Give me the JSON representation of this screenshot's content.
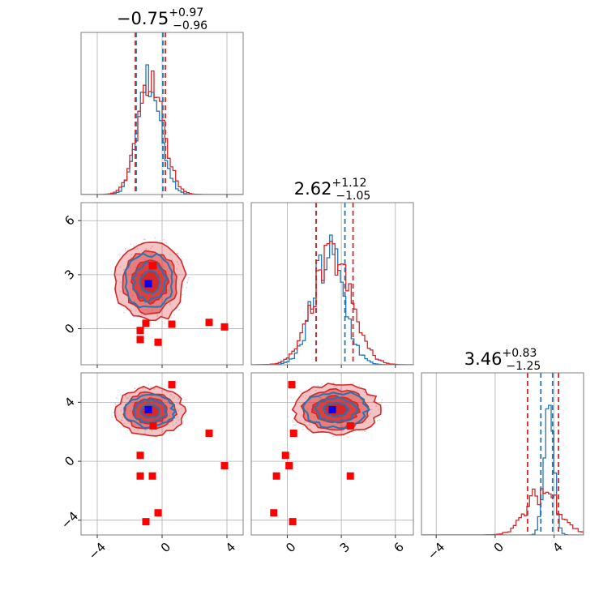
{
  "chart_data": {
    "type": "corner",
    "colors": {
      "series_a": "#1f77b4",
      "series_b": "#d62728",
      "truth_marker": "#0000ff",
      "points": "#ff0000"
    },
    "grid": true,
    "titles": [
      {
        "value": "−0.75",
        "plus": "+0.97",
        "minus": "−0.96"
      },
      {
        "value": "2.62",
        "plus": "+1.12",
        "minus": "−1.05"
      },
      {
        "value": "3.46",
        "plus": "+0.83",
        "minus": "−1.25"
      }
    ],
    "axes": [
      {
        "range": [
          -5,
          5
        ],
        "ticks": [
          -4,
          0,
          4
        ],
        "labels": [
          "−4",
          "0",
          "4"
        ]
      },
      {
        "range": [
          -2,
          7
        ],
        "ticks": [
          0,
          3,
          6
        ],
        "labels": [
          "0",
          "3",
          "6"
        ]
      },
      {
        "range": [
          -5,
          6
        ],
        "ticks": [
          -4,
          0,
          4
        ],
        "labels": [
          "−4",
          "0",
          "4"
        ]
      }
    ],
    "truth": [
      -0.85,
      2.5,
      3.5
    ],
    "quantiles": {
      "series_a": [
        [
          -1.6,
          0.05
        ],
        [
          1.6,
          3.2
        ],
        [
          3.1,
          3.9
        ]
      ],
      "series_b": [
        [
          -1.65,
          0.2
        ],
        [
          1.6,
          3.65
        ],
        [
          2.2,
          4.3
        ]
      ]
    },
    "scatter_points": [
      {
        "x": -0.55,
        "y": 3.5,
        "z": 2.4
      },
      {
        "x": -1.35,
        "y": -0.1,
        "z": 0.4
      },
      {
        "x": -1.35,
        "y": -0.6,
        "z": -1.0
      },
      {
        "x": -1.0,
        "y": 0.3,
        "z": -4.1
      },
      {
        "x": -0.6,
        "y": 3.5,
        "z": -1.0
      },
      {
        "x": -0.25,
        "y": -0.75,
        "z": -3.5
      },
      {
        "x": 0.6,
        "y": 0.25,
        "z": 5.2
      },
      {
        "x": 2.9,
        "y": 0.35,
        "z": 1.9
      },
      {
        "x": 3.85,
        "y": 0.1,
        "z": -0.3
      }
    ]
  }
}
